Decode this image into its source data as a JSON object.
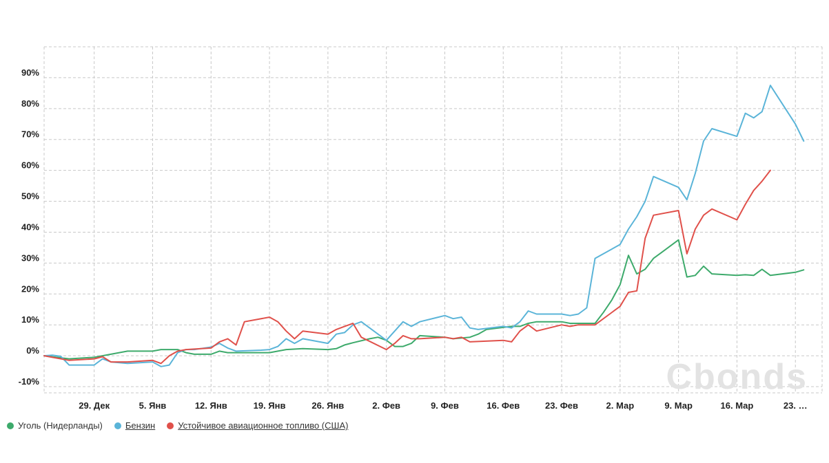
{
  "watermark": "Cbonds",
  "chart_data": {
    "type": "line",
    "yunit": "%",
    "ylim": [
      -12,
      100
    ],
    "yticks": [
      -10,
      0,
      10,
      20,
      30,
      40,
      50,
      60,
      70,
      80,
      90
    ],
    "ytick_labels": [
      "-10%",
      "0%",
      "10%",
      "20%",
      "30%",
      "40%",
      "50%",
      "60%",
      "70%",
      "80%",
      "90%"
    ],
    "xlim": [
      -6,
      87.2
    ],
    "xticks": [
      0,
      7,
      14,
      21,
      28,
      35,
      42,
      49,
      56,
      63,
      70,
      77,
      84
    ],
    "xtick_labels": [
      "29. Дек",
      "5. Янв",
      "12. Янв",
      "19. Янв",
      "26. Янв",
      "2. Фев",
      "9. Фев",
      "16. Фев",
      "23. Фев",
      "2. Мар",
      "9. Мар",
      "16. Мар",
      "23. …"
    ],
    "grid": true,
    "legend_position": "bottom-left",
    "series": [
      {
        "name": "Уголь (Нидерланды)",
        "color": "#3daa6b",
        "underlined": false,
        "points": [
          [
            -6,
            0
          ],
          [
            -3,
            -1
          ],
          [
            0,
            -0.5
          ],
          [
            2,
            0.5
          ],
          [
            4,
            1.5
          ],
          [
            7,
            1.5
          ],
          [
            8,
            2
          ],
          [
            9,
            2
          ],
          [
            10,
            2
          ],
          [
            11,
            1
          ],
          [
            12,
            0.5
          ],
          [
            14,
            0.5
          ],
          [
            15,
            1.5
          ],
          [
            16,
            1
          ],
          [
            18,
            1
          ],
          [
            20,
            1
          ],
          [
            21,
            1
          ],
          [
            22,
            1.5
          ],
          [
            23,
            2
          ],
          [
            25,
            2.3
          ],
          [
            28,
            2
          ],
          [
            29,
            2.3
          ],
          [
            30,
            3.5
          ],
          [
            31,
            4.2
          ],
          [
            33,
            5.5
          ],
          [
            34,
            6
          ],
          [
            35,
            5
          ],
          [
            36,
            3
          ],
          [
            37,
            3
          ],
          [
            38,
            4
          ],
          [
            39,
            6.5
          ],
          [
            42,
            6
          ],
          [
            43,
            5.5
          ],
          [
            45,
            6
          ],
          [
            46,
            7
          ],
          [
            47,
            8.5
          ],
          [
            50,
            9.5
          ],
          [
            51,
            9.5
          ],
          [
            52,
            10.5
          ],
          [
            53,
            11
          ],
          [
            56,
            11
          ],
          [
            57,
            10.5
          ],
          [
            59,
            10.5
          ],
          [
            60,
            10.5
          ],
          [
            61,
            14
          ],
          [
            62,
            18
          ],
          [
            63,
            23
          ],
          [
            64,
            32.5
          ],
          [
            65,
            26.5
          ],
          [
            66,
            28
          ],
          [
            67,
            31.5
          ],
          [
            68,
            33.5
          ],
          [
            70,
            37.5
          ],
          [
            71,
            25.5
          ],
          [
            72,
            26
          ],
          [
            73,
            29
          ],
          [
            74,
            26.5
          ],
          [
            77,
            26
          ],
          [
            78,
            26.2
          ],
          [
            79,
            26
          ],
          [
            80,
            28
          ],
          [
            81,
            26
          ],
          [
            84,
            27
          ],
          [
            85,
            27.8
          ]
        ]
      },
      {
        "name": "Бензин",
        "color": "#5ab4d8",
        "underlined": true,
        "points": [
          [
            -6,
            0
          ],
          [
            -5,
            0.2
          ],
          [
            -4,
            -0.2
          ],
          [
            -3,
            -3
          ],
          [
            0,
            -3
          ],
          [
            1,
            -1
          ],
          [
            2,
            -2
          ],
          [
            4,
            -2.5
          ],
          [
            7,
            -2
          ],
          [
            8,
            -3.5
          ],
          [
            9,
            -3
          ],
          [
            10,
            1
          ],
          [
            11,
            2
          ],
          [
            12,
            2
          ],
          [
            14,
            2.8
          ],
          [
            15,
            4
          ],
          [
            16,
            2.5
          ],
          [
            17,
            1.5
          ],
          [
            20,
            1.8
          ],
          [
            21,
            2
          ],
          [
            22,
            3
          ],
          [
            23,
            5.5
          ],
          [
            24,
            4
          ],
          [
            25,
            5.5
          ],
          [
            28,
            4
          ],
          [
            29,
            7
          ],
          [
            30,
            7.5
          ],
          [
            31,
            10
          ],
          [
            32,
            11
          ],
          [
            35,
            5
          ],
          [
            36,
            8
          ],
          [
            37,
            11
          ],
          [
            38,
            9.5
          ],
          [
            39,
            11
          ],
          [
            42,
            13
          ],
          [
            43,
            12
          ],
          [
            44,
            12.5
          ],
          [
            45,
            9
          ],
          [
            46,
            8.5
          ],
          [
            49,
            9.5
          ],
          [
            50,
            9
          ],
          [
            51,
            11
          ],
          [
            52,
            14.5
          ],
          [
            53,
            13.5
          ],
          [
            56,
            13.5
          ],
          [
            57,
            13
          ],
          [
            58,
            13.5
          ],
          [
            59,
            15.5
          ],
          [
            60,
            31.5
          ],
          [
            63,
            36
          ],
          [
            64,
            41
          ],
          [
            65,
            45
          ],
          [
            66,
            50
          ],
          [
            67,
            58
          ],
          [
            70,
            54.5
          ],
          [
            71,
            50.5
          ],
          [
            72,
            59
          ],
          [
            73,
            69.5
          ],
          [
            74,
            73.5
          ],
          [
            77,
            71
          ],
          [
            78,
            78.5
          ],
          [
            79,
            77
          ],
          [
            80,
            79
          ],
          [
            81,
            87.5
          ],
          [
            84,
            75
          ],
          [
            85,
            69.5
          ]
        ]
      },
      {
        "name": "Устойчивое авиационное топливо (США)",
        "color": "#e0504a",
        "underlined": true,
        "points": [
          [
            -6,
            0
          ],
          [
            -5,
            -0.5
          ],
          [
            -3,
            -1.5
          ],
          [
            0,
            -1
          ],
          [
            1,
            -0.3
          ],
          [
            2,
            -2
          ],
          [
            4,
            -2
          ],
          [
            7,
            -1.5
          ],
          [
            8,
            -2.5
          ],
          [
            9,
            0
          ],
          [
            10,
            1.5
          ],
          [
            11,
            2
          ],
          [
            14,
            2.5
          ],
          [
            15,
            4.5
          ],
          [
            16,
            5.5
          ],
          [
            17,
            3.5
          ],
          [
            18,
            11
          ],
          [
            21,
            12.5
          ],
          [
            22,
            11
          ],
          [
            23,
            8
          ],
          [
            24,
            5.5
          ],
          [
            25,
            8
          ],
          [
            28,
            7
          ],
          [
            29,
            8.5
          ],
          [
            30,
            9.5
          ],
          [
            31,
            10.5
          ],
          [
            32,
            6
          ],
          [
            35,
            2
          ],
          [
            36,
            4
          ],
          [
            37,
            6.5
          ],
          [
            38,
            5.5
          ],
          [
            39,
            5.5
          ],
          [
            42,
            6
          ],
          [
            43,
            5.5
          ],
          [
            44,
            6
          ],
          [
            45,
            4.5
          ],
          [
            49,
            5
          ],
          [
            50,
            4.5
          ],
          [
            51,
            8
          ],
          [
            52,
            10
          ],
          [
            53,
            8
          ],
          [
            56,
            10
          ],
          [
            57,
            9.5
          ],
          [
            58,
            10
          ],
          [
            60,
            10
          ],
          [
            63,
            16
          ],
          [
            64,
            20.5
          ],
          [
            65,
            21
          ],
          [
            66,
            38
          ],
          [
            67,
            45.5
          ],
          [
            70,
            47
          ],
          [
            71,
            33
          ],
          [
            72,
            41
          ],
          [
            73,
            45.5
          ],
          [
            74,
            47.5
          ],
          [
            77,
            44
          ],
          [
            78,
            49
          ],
          [
            79,
            53.5
          ],
          [
            80,
            56.5
          ],
          [
            81,
            60
          ]
        ]
      }
    ]
  }
}
